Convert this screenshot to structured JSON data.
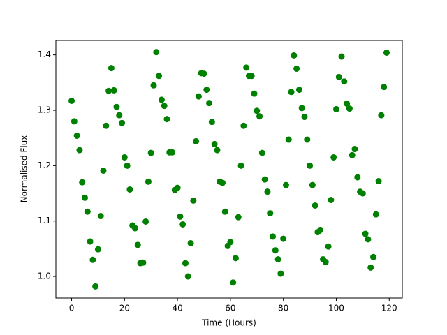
{
  "chart_data": {
    "type": "scatter",
    "xlabel": "Time (Hours)",
    "ylabel": "Normalised Flux",
    "series": [
      {
        "color": "#008000",
        "x": [
          0,
          1,
          2,
          3,
          4,
          5,
          6,
          7,
          8,
          9,
          10,
          11,
          12,
          13,
          14,
          15,
          16,
          17,
          18,
          19,
          20,
          21,
          22,
          23,
          24,
          25,
          26,
          27,
          28,
          29,
          30,
          31,
          32,
          33,
          34,
          35,
          36,
          37,
          38,
          39,
          40,
          41,
          42,
          43,
          44,
          45,
          46,
          47,
          48,
          49,
          50,
          51,
          52,
          53,
          54,
          55,
          56,
          57,
          58,
          59,
          60,
          61,
          62,
          63,
          64,
          65,
          66,
          67,
          68,
          69,
          70,
          71,
          72,
          73,
          74,
          75,
          76,
          77,
          78,
          79,
          80,
          81,
          82,
          83,
          84,
          85,
          86,
          87,
          88,
          89,
          90,
          91,
          92,
          93,
          94,
          95,
          96,
          97,
          98,
          99,
          100,
          101,
          102,
          103,
          104,
          105,
          106,
          107,
          108,
          109,
          110,
          111,
          112,
          113,
          114,
          115,
          116,
          117,
          118,
          119
        ],
        "values": [
          1.317,
          1.28,
          1.254,
          1.228,
          1.17,
          1.142,
          1.117,
          1.063,
          1.03,
          0.982,
          1.049,
          1.109,
          1.191,
          1.272,
          1.335,
          1.376,
          1.336,
          1.306,
          1.291,
          1.277,
          1.215,
          1.2,
          1.157,
          1.092,
          1.087,
          1.057,
          1.024,
          1.025,
          1.099,
          1.171,
          1.223,
          1.345,
          1.405,
          1.362,
          1.319,
          1.308,
          1.284,
          1.224,
          1.224,
          1.156,
          1.16,
          1.108,
          1.094,
          1.024,
          1.0,
          1.06,
          1.137,
          1.244,
          1.325,
          1.367,
          1.366,
          1.337,
          1.313,
          1.279,
          1.239,
          1.228,
          1.171,
          1.169,
          1.117,
          1.055,
          1.062,
          0.989,
          1.033,
          1.107,
          1.2,
          1.272,
          1.377,
          1.362,
          1.362,
          1.33,
          1.299,
          1.289,
          1.223,
          1.175,
          1.153,
          1.114,
          1.072,
          1.047,
          1.031,
          1.005,
          1.068,
          1.165,
          1.247,
          1.333,
          1.399,
          1.375,
          1.337,
          1.304,
          1.288,
          1.247,
          1.2,
          1.165,
          1.128,
          1.08,
          1.084,
          1.031,
          1.026,
          1.054,
          1.138,
          1.215,
          1.302,
          1.36,
          1.397,
          1.352,
          1.312,
          1.303,
          1.219,
          1.23,
          1.179,
          1.153,
          1.15,
          1.077,
          1.067,
          1.016,
          1.035,
          1.112,
          1.172,
          1.291,
          1.342,
          1.404
        ]
      }
    ],
    "xlim": [
      -5.95,
      124.95
    ],
    "xticks": [
      0,
      20,
      40,
      60,
      80,
      100,
      120
    ],
    "ylim": [
      0.961,
      1.426
    ],
    "yticks": [
      {
        "value": 1,
        "label": "1.0"
      },
      1.1,
      1.2,
      1.3,
      1.4
    ]
  }
}
